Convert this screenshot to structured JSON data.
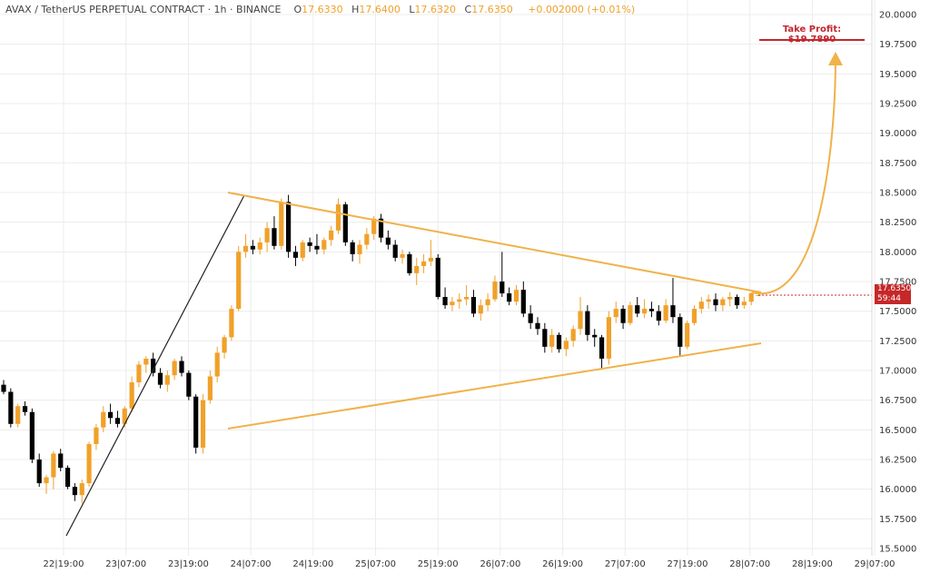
{
  "header": {
    "symbol": "AVAX / TetherUS PERPETUAL CONTRACT · 1h · BINANCE",
    "open_label": "O",
    "open": "17.6330",
    "high_label": "H",
    "high": "17.6400",
    "low_label": "L",
    "low": "17.6320",
    "close_label": "C",
    "close": "17.6350",
    "change": "+0.002000 (+0.01%)"
  },
  "take_profit_label": "Take Profit: $19.7890",
  "price_badge": {
    "price": "17.6350",
    "countdown": "59:44"
  },
  "colors": {
    "up": "#f0a12a",
    "down": "#000000",
    "trendline": "#f0b24a",
    "take_profit": "#c0282f",
    "badge": "#c62828",
    "grid": "#ececec"
  },
  "chart_data": {
    "type": "candlestick",
    "interval": "1h",
    "y_axis_side": "right",
    "ylim": [
      15.5,
      20.0
    ],
    "y_ticks": [
      "15.5000",
      "15.7500",
      "16.0000",
      "16.2500",
      "16.5000",
      "16.7500",
      "17.0000",
      "17.2500",
      "17.5000",
      "17.7500",
      "18.0000",
      "18.2500",
      "18.5000",
      "18.7500",
      "19.0000",
      "19.2500",
      "19.5000",
      "19.7500",
      "20.0000"
    ],
    "x_ticks": [
      "22|19:00",
      "23|07:00",
      "23|19:00",
      "24|07:00",
      "24|19:00",
      "25|07:00",
      "25|19:00",
      "26|07:00",
      "26|19:00",
      "27|07:00",
      "27|19:00",
      "28|07:00",
      "28|19:00",
      "29|07:00"
    ],
    "candles": [
      [
        16.88,
        16.92,
        16.8,
        16.82
      ],
      [
        16.82,
        16.85,
        16.52,
        16.55
      ],
      [
        16.55,
        16.72,
        16.52,
        16.7
      ],
      [
        16.7,
        16.74,
        16.62,
        16.65
      ],
      [
        16.65,
        16.68,
        16.22,
        16.25
      ],
      [
        16.25,
        16.3,
        16.02,
        16.05
      ],
      [
        16.05,
        16.12,
        15.96,
        16.1
      ],
      [
        16.1,
        16.32,
        16.0,
        16.3
      ],
      [
        16.3,
        16.34,
        16.15,
        16.18
      ],
      [
        16.18,
        16.2,
        16.0,
        16.02
      ],
      [
        16.02,
        16.05,
        15.9,
        15.95
      ],
      [
        15.95,
        16.08,
        15.88,
        16.05
      ],
      [
        16.05,
        16.4,
        16.02,
        16.38
      ],
      [
        16.38,
        16.55,
        16.33,
        16.52
      ],
      [
        16.52,
        16.7,
        16.48,
        16.65
      ],
      [
        16.65,
        16.72,
        16.55,
        16.6
      ],
      [
        16.6,
        16.66,
        16.52,
        16.55
      ],
      [
        16.55,
        16.7,
        16.52,
        16.68
      ],
      [
        16.68,
        16.95,
        16.65,
        16.9
      ],
      [
        16.9,
        17.08,
        16.86,
        17.05
      ],
      [
        17.05,
        17.12,
        16.98,
        17.1
      ],
      [
        17.1,
        17.15,
        16.95,
        16.98
      ],
      [
        16.98,
        17.02,
        16.85,
        16.88
      ],
      [
        16.88,
        17.0,
        16.82,
        16.96
      ],
      [
        16.96,
        17.1,
        16.92,
        17.08
      ],
      [
        17.08,
        17.12,
        16.95,
        16.98
      ],
      [
        16.98,
        17.0,
        16.75,
        16.78
      ],
      [
        16.78,
        16.8,
        16.3,
        16.35
      ],
      [
        16.35,
        16.8,
        16.3,
        16.75
      ],
      [
        16.75,
        17.0,
        16.72,
        16.95
      ],
      [
        16.95,
        17.2,
        16.9,
        17.15
      ],
      [
        17.15,
        17.3,
        17.1,
        17.28
      ],
      [
        17.28,
        17.55,
        17.25,
        17.52
      ],
      [
        17.52,
        18.05,
        17.5,
        18.0
      ],
      [
        18.0,
        18.15,
        17.95,
        18.05
      ],
      [
        18.05,
        18.1,
        17.98,
        18.02
      ],
      [
        18.02,
        18.12,
        17.98,
        18.08
      ],
      [
        18.08,
        18.25,
        18.0,
        18.2
      ],
      [
        18.2,
        18.3,
        18.02,
        18.05
      ],
      [
        18.05,
        18.45,
        18.02,
        18.42
      ],
      [
        18.42,
        18.48,
        17.95,
        18.0
      ],
      [
        18.0,
        18.05,
        17.88,
        17.95
      ],
      [
        17.95,
        18.1,
        17.92,
        18.08
      ],
      [
        18.08,
        18.12,
        18.0,
        18.05
      ],
      [
        18.05,
        18.15,
        17.98,
        18.02
      ],
      [
        18.02,
        18.12,
        17.98,
        18.1
      ],
      [
        18.1,
        18.22,
        18.05,
        18.18
      ],
      [
        18.18,
        18.45,
        18.15,
        18.4
      ],
      [
        18.4,
        18.42,
        18.05,
        18.08
      ],
      [
        18.08,
        18.1,
        17.92,
        17.98
      ],
      [
        17.98,
        18.1,
        17.9,
        18.06
      ],
      [
        18.06,
        18.2,
        18.02,
        18.15
      ],
      [
        18.15,
        18.3,
        18.1,
        18.28
      ],
      [
        18.28,
        18.32,
        18.08,
        18.12
      ],
      [
        18.12,
        18.18,
        18.02,
        18.06
      ],
      [
        18.06,
        18.1,
        17.92,
        17.95
      ],
      [
        17.95,
        18.02,
        17.9,
        17.98
      ],
      [
        17.98,
        18.0,
        17.8,
        17.82
      ],
      [
        17.82,
        17.95,
        17.72,
        17.88
      ],
      [
        17.88,
        17.98,
        17.82,
        17.92
      ],
      [
        17.92,
        18.1,
        17.88,
        17.95
      ],
      [
        17.95,
        17.98,
        17.6,
        17.62
      ],
      [
        17.62,
        17.7,
        17.52,
        17.55
      ],
      [
        17.55,
        17.62,
        17.5,
        17.58
      ],
      [
        17.58,
        17.65,
        17.52,
        17.6
      ],
      [
        17.6,
        17.72,
        17.55,
        17.62
      ],
      [
        17.62,
        17.68,
        17.45,
        17.48
      ],
      [
        17.48,
        17.6,
        17.42,
        17.55
      ],
      [
        17.55,
        17.65,
        17.5,
        17.6
      ],
      [
        17.6,
        17.8,
        17.58,
        17.75
      ],
      [
        17.75,
        18.0,
        17.62,
        17.65
      ],
      [
        17.65,
        17.7,
        17.55,
        17.58
      ],
      [
        17.58,
        17.72,
        17.55,
        17.68
      ],
      [
        17.68,
        17.75,
        17.45,
        17.48
      ],
      [
        17.48,
        17.55,
        17.35,
        17.4
      ],
      [
        17.4,
        17.45,
        17.3,
        17.35
      ],
      [
        17.35,
        17.4,
        17.15,
        17.2
      ],
      [
        17.2,
        17.35,
        17.15,
        17.3
      ],
      [
        17.3,
        17.32,
        17.15,
        17.18
      ],
      [
        17.18,
        17.28,
        17.12,
        17.25
      ],
      [
        17.25,
        17.38,
        17.2,
        17.35
      ],
      [
        17.35,
        17.62,
        17.3,
        17.5
      ],
      [
        17.5,
        17.55,
        17.25,
        17.3
      ],
      [
        17.3,
        17.35,
        17.2,
        17.28
      ],
      [
        17.28,
        17.3,
        17.02,
        17.1
      ],
      [
        17.1,
        17.5,
        17.05,
        17.45
      ],
      [
        17.45,
        17.58,
        17.4,
        17.52
      ],
      [
        17.52,
        17.55,
        17.35,
        17.4
      ],
      [
        17.4,
        17.58,
        17.38,
        17.55
      ],
      [
        17.55,
        17.62,
        17.45,
        17.48
      ],
      [
        17.48,
        17.6,
        17.44,
        17.52
      ],
      [
        17.52,
        17.58,
        17.45,
        17.5
      ],
      [
        17.5,
        17.55,
        17.38,
        17.42
      ],
      [
        17.42,
        17.6,
        17.4,
        17.55
      ],
      [
        17.55,
        17.78,
        17.4,
        17.45
      ],
      [
        17.45,
        17.48,
        17.12,
        17.2
      ],
      [
        17.2,
        17.42,
        17.18,
        17.4
      ],
      [
        17.4,
        17.55,
        17.38,
        17.52
      ],
      [
        17.52,
        17.62,
        17.48,
        17.58
      ],
      [
        17.58,
        17.64,
        17.52,
        17.6
      ],
      [
        17.6,
        17.65,
        17.5,
        17.55
      ],
      [
        17.55,
        17.62,
        17.5,
        17.6
      ],
      [
        17.6,
        17.66,
        17.54,
        17.62
      ],
      [
        17.62,
        17.64,
        17.52,
        17.55
      ],
      [
        17.55,
        17.62,
        17.52,
        17.58
      ],
      [
        17.58,
        17.66,
        17.55,
        17.65
      ],
      [
        17.633,
        17.64,
        17.632,
        17.635
      ]
    ]
  }
}
